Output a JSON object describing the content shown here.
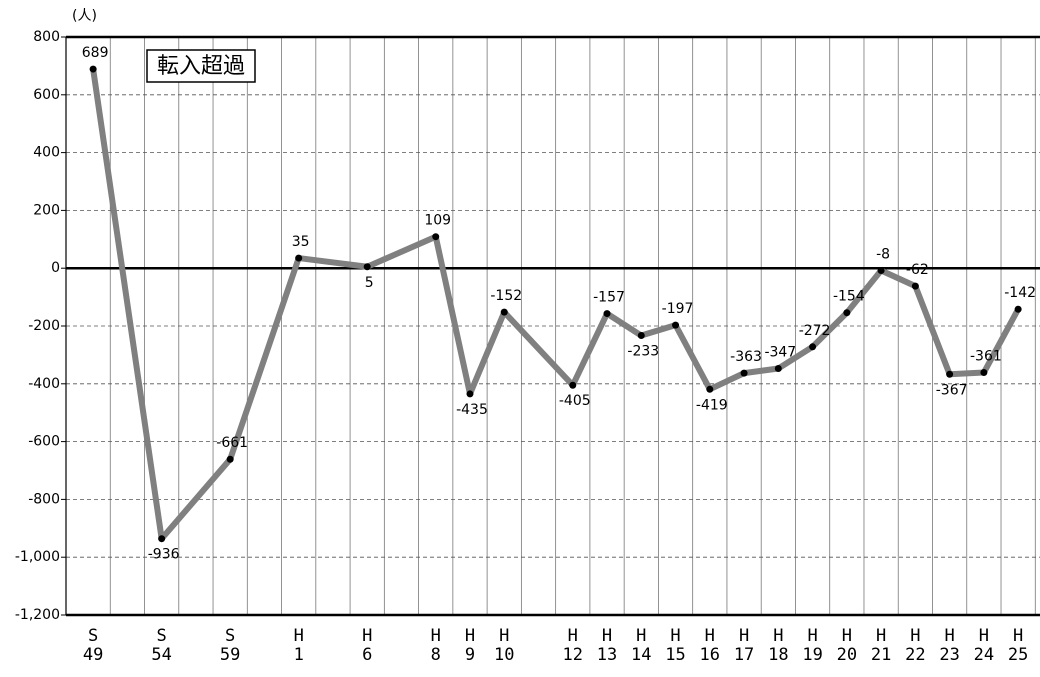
{
  "chart_data": {
    "type": "line",
    "unit_label": "(人)",
    "annotation": "転入超過",
    "categories": [
      "S\n49",
      "S\n54",
      "S\n59",
      "H\n1",
      "H\n6",
      "H\n8",
      "H\n9",
      "H\n10",
      "H\n12",
      "H\n13",
      "H\n14",
      "H\n15",
      "H\n16",
      "H\n17",
      "H\n18",
      "H\n19",
      "H\n20",
      "H\n21",
      "H\n22",
      "H\n23",
      "H\n24",
      "H\n25"
    ],
    "series": [
      {
        "color": "#808080",
        "values": [
          689,
          -936,
          -661,
          35,
          5,
          109,
          -435,
          -152,
          -405,
          -157,
          -233,
          -197,
          -419,
          -363,
          -347,
          -272,
          -154,
          -8,
          -62,
          -367,
          -361,
          -142
        ]
      }
    ],
    "ylim": [
      -1200,
      800
    ],
    "yticks": [
      {
        "value": -1200,
        "label": "-1,200"
      },
      {
        "value": -1000,
        "label": "-1,000"
      },
      -800,
      -600,
      -400,
      -200,
      0,
      200,
      400,
      600,
      800
    ],
    "grid": true
  }
}
